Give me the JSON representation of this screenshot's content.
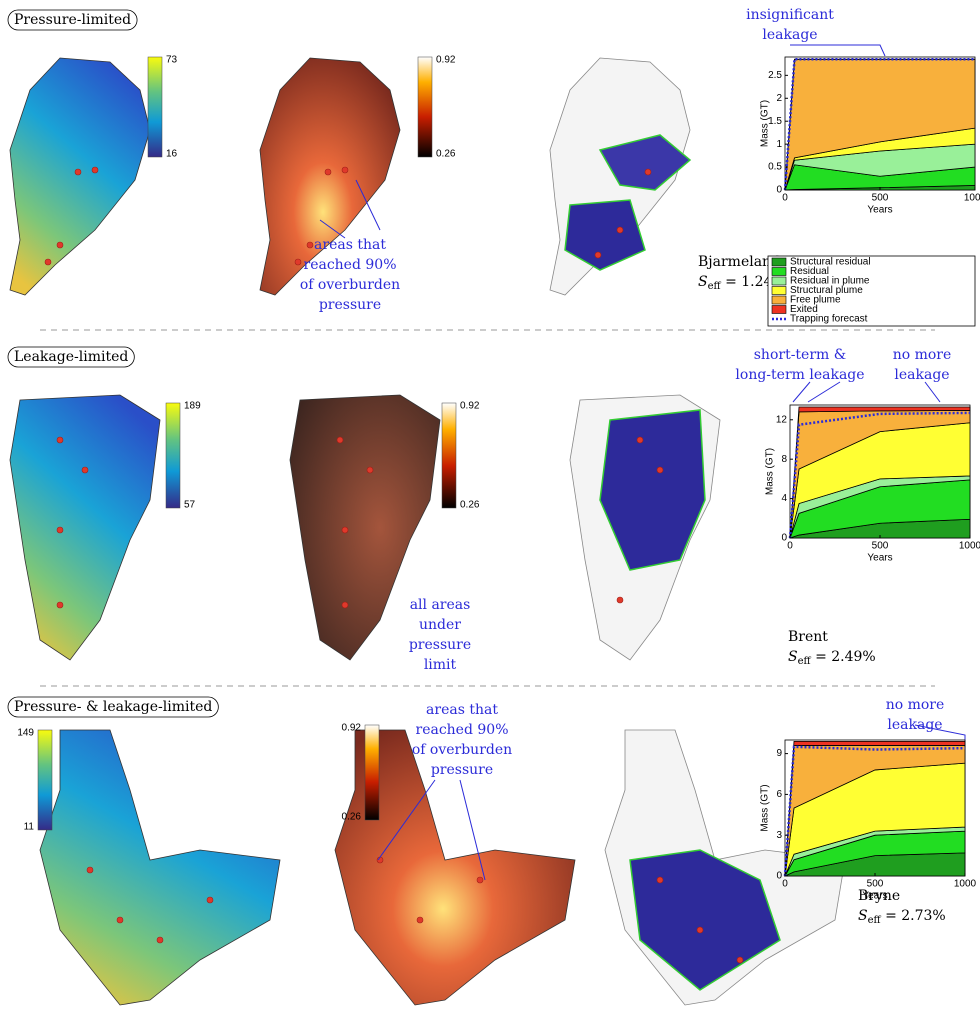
{
  "sections": [
    {
      "label": "Pressure-limited",
      "depth_colorbar": [
        73,
        16
      ],
      "pressure_colorbar": [
        0.92,
        0.26
      ],
      "map_annotation": [
        "areas that",
        "reached 90%",
        "of overburden",
        "pressure"
      ],
      "chart_annotations": [
        [
          "insignificant",
          "leakage"
        ]
      ],
      "site": "Bjarmeland",
      "seff": {
        "symbol": "S",
        "subscript": "eff",
        "value": " = 1.24%"
      }
    },
    {
      "label": "Leakage-limited",
      "depth_colorbar": [
        189,
        57
      ],
      "pressure_colorbar": [
        0.92,
        0.26
      ],
      "map_annotation": [
        "all areas",
        "under",
        "pressure",
        "limit"
      ],
      "chart_annotations": [
        [
          "short-term &",
          "long-term leakage"
        ],
        [
          "no more",
          "leakage"
        ]
      ],
      "site": "Brent",
      "seff": {
        "symbol": "S",
        "subscript": "eff",
        "value": " = 2.49%"
      }
    },
    {
      "label": "Pressure- & leakage-limited",
      "depth_colorbar": [
        149,
        11
      ],
      "pressure_colorbar": [
        0.92,
        0.26
      ],
      "map_annotation": [
        "areas that",
        "reached 90%",
        "of overburden",
        "pressure"
      ],
      "chart_annotations": [
        [
          "no more",
          "leakage"
        ]
      ],
      "site": "Bryne",
      "seff": {
        "symbol": "S",
        "subscript": "eff",
        "value": " = 2.73%"
      }
    }
  ],
  "chart_data": [
    {
      "type": "stacked_area",
      "xlabel": "Years",
      "ylabel": "Mass (GT)",
      "x": [
        0,
        50,
        500,
        1000
      ],
      "xlim": [
        0,
        1000
      ],
      "xticks": [
        0,
        500,
        1000
      ],
      "ylim": [
        0,
        2.9
      ],
      "yticks": [
        0,
        0.5,
        1,
        1.5,
        2,
        2.5
      ],
      "legend": true,
      "series": [
        {
          "name": "Structural residual",
          "color": "#1f9e1f",
          "values": [
            0,
            0.01,
            0.05,
            0.1
          ]
        },
        {
          "name": "Residual",
          "color": "#22dd22",
          "values": [
            0,
            0.54,
            0.25,
            0.4
          ]
        },
        {
          "name": "Residual in plume",
          "color": "#99f099",
          "values": [
            0,
            0.1,
            0.55,
            0.5
          ]
        },
        {
          "name": "Structural plume",
          "color": "#ffff33",
          "values": [
            0,
            0.05,
            0.2,
            0.35
          ]
        },
        {
          "name": "Free plume",
          "color": "#f8b03c",
          "values": [
            0,
            2.15,
            1.8,
            1.5
          ]
        },
        {
          "name": "Exited",
          "color": "#ee3322",
          "values": [
            0,
            0,
            0,
            0
          ]
        },
        {
          "name": "Trapping forecast",
          "color": "#2b2bd8",
          "kind": "line",
          "values": [
            0,
            2.85,
            2.85,
            2.85
          ]
        }
      ]
    },
    {
      "type": "stacked_area",
      "xlabel": "Years",
      "ylabel": "Mass (GT)",
      "x": [
        0,
        50,
        500,
        1000
      ],
      "xlim": [
        0,
        1000
      ],
      "xticks": [
        0,
        500,
        1000
      ],
      "ylim": [
        0,
        13.5
      ],
      "yticks": [
        0,
        4,
        8,
        12
      ],
      "series": [
        {
          "color": "#1f9e1f",
          "values": [
            0,
            0.3,
            1.5,
            1.9
          ]
        },
        {
          "color": "#22dd22",
          "values": [
            0,
            2.2,
            3.7,
            4.0
          ]
        },
        {
          "color": "#99f099",
          "values": [
            0,
            1.0,
            0.8,
            0.4
          ]
        },
        {
          "color": "#ffff33",
          "values": [
            0,
            3.5,
            4.8,
            5.4
          ]
        },
        {
          "color": "#f8b03c",
          "values": [
            0,
            5.8,
            2.1,
            1.25
          ]
        },
        {
          "color": "#ee3322",
          "values": [
            0,
            0.5,
            0.4,
            0.35
          ]
        },
        {
          "color": "#2b2bd8",
          "kind": "line",
          "values": [
            0,
            11.5,
            12.6,
            12.7
          ]
        }
      ]
    },
    {
      "type": "stacked_area",
      "xlabel": "Years",
      "ylabel": "Mass (GT)",
      "x": [
        0,
        50,
        500,
        1000
      ],
      "xlim": [
        0,
        1000
      ],
      "xticks": [
        0,
        500,
        1000
      ],
      "ylim": [
        0,
        10
      ],
      "yticks": [
        0,
        3,
        6,
        9
      ],
      "series": [
        {
          "color": "#1f9e1f",
          "values": [
            0,
            0.3,
            1.5,
            1.7
          ]
        },
        {
          "color": "#22dd22",
          "values": [
            0,
            0.9,
            1.5,
            1.6
          ]
        },
        {
          "color": "#99f099",
          "values": [
            0,
            0.4,
            0.3,
            0.3
          ]
        },
        {
          "color": "#ffff33",
          "values": [
            0,
            3.4,
            4.5,
            4.7
          ]
        },
        {
          "color": "#f8b03c",
          "values": [
            0,
            4.6,
            1.8,
            1.3
          ]
        },
        {
          "color": "#ee3322",
          "values": [
            0,
            0.3,
            0.3,
            0.3
          ]
        },
        {
          "color": "#2b2bd8",
          "kind": "line",
          "values": [
            0,
            9.5,
            9.3,
            9.4
          ]
        }
      ]
    }
  ]
}
